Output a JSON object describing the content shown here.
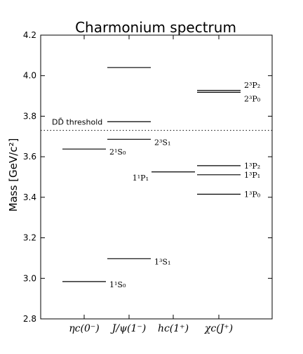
{
  "chart_data": {
    "type": "level_diagram",
    "title": "Charmonium spectrum",
    "ylabel": "Mass [GeV/c²]",
    "ylim": [
      2.8,
      4.2
    ],
    "yticks": [
      "2.8",
      "3.0",
      "3.2",
      "3.4",
      "3.6",
      "3.8",
      "4.0",
      "4.2"
    ],
    "ytick_values": [
      2.8,
      3.0,
      3.2,
      3.4,
      3.6,
      3.8,
      4.0,
      4.2
    ],
    "columns": [
      {
        "label": "ηc(0⁻)"
      },
      {
        "label": "J/ψ(1⁻)"
      },
      {
        "label": "hc(1⁺)"
      },
      {
        "label": "χc(J⁺)"
      }
    ],
    "levels": [
      {
        "column": 0,
        "mass": 2.984,
        "label": "1¹S₀"
      },
      {
        "column": 0,
        "mass": 3.638,
        "label": "2¹S₀"
      },
      {
        "column": 1,
        "mass": 3.097,
        "label": "1³S₁"
      },
      {
        "column": 1,
        "mass": 3.686,
        "label": "2³S₁"
      },
      {
        "column": 1,
        "mass": 3.773,
        "label": ""
      },
      {
        "column": 1,
        "mass": 4.04,
        "label": ""
      },
      {
        "column": 2,
        "mass": 3.525,
        "label": "1¹P₁"
      },
      {
        "column": 3,
        "mass": 3.415,
        "label": "1³P₀"
      },
      {
        "column": 3,
        "mass": 3.511,
        "label": "1³P₁"
      },
      {
        "column": 3,
        "mass": 3.556,
        "label": "1³P₂"
      },
      {
        "column": 3,
        "mass": 3.918,
        "label": "2³P₀"
      },
      {
        "column": 3,
        "mass": 3.927,
        "label": "2³P₂"
      }
    ],
    "threshold": {
      "mass": 3.73,
      "label": "DD̄ threshold",
      "style": "dotted"
    }
  }
}
